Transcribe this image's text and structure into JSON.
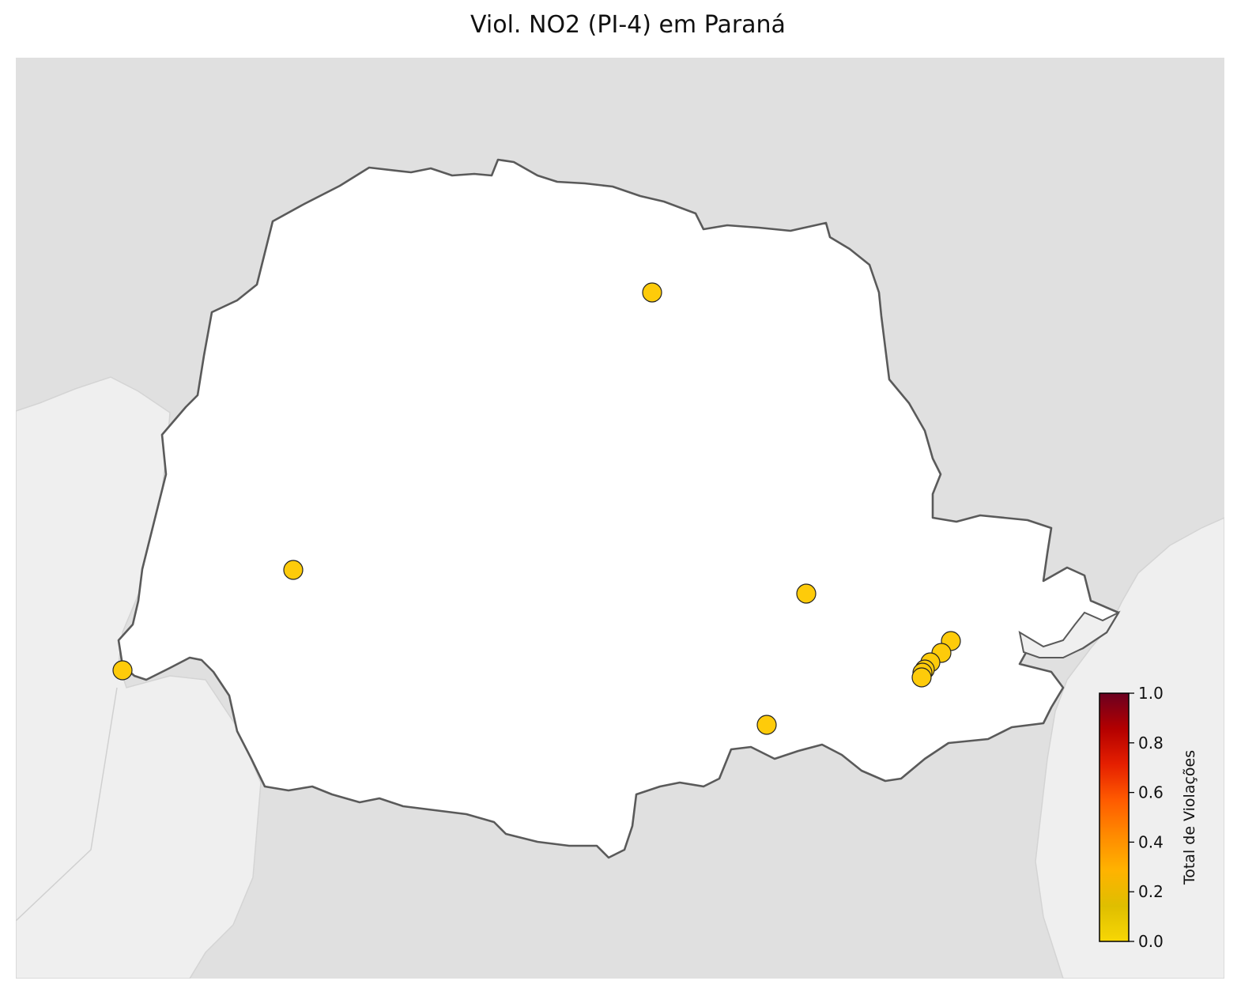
{
  "title": "Viol. NO2 (PI-4) em Paraná",
  "colors": {
    "neighbor_dark": "#e0e0e0",
    "neighbor_light": "#efefef",
    "state_fill": "#ffffff",
    "state_border": "#5a5a5a",
    "point_fill": "#fecb0a",
    "point_stroke": "#222222"
  },
  "stations": [
    {
      "label": "station-1"
    },
    {
      "label": "station-2"
    },
    {
      "label": "station-3"
    },
    {
      "label": "station-4"
    },
    {
      "label": "station-5"
    },
    {
      "label": "station-6"
    },
    {
      "label": "station-7"
    },
    {
      "label": "station-8"
    },
    {
      "label": "station-9"
    },
    {
      "label": "station-10"
    },
    {
      "label": "station-11"
    }
  ],
  "colorbar": {
    "label": "Total de Violações",
    "min": 0.0,
    "max": 1.0,
    "ticks": [
      "0.0",
      "0.2",
      "0.4",
      "0.6",
      "0.8",
      "1.0"
    ],
    "cmap": [
      "#f7d705",
      "#dfbe00",
      "#ffb300",
      "#ff8a00",
      "#ff5a00",
      "#e51f00",
      "#b30000",
      "#6b0020"
    ]
  },
  "point_value": 0.0
}
